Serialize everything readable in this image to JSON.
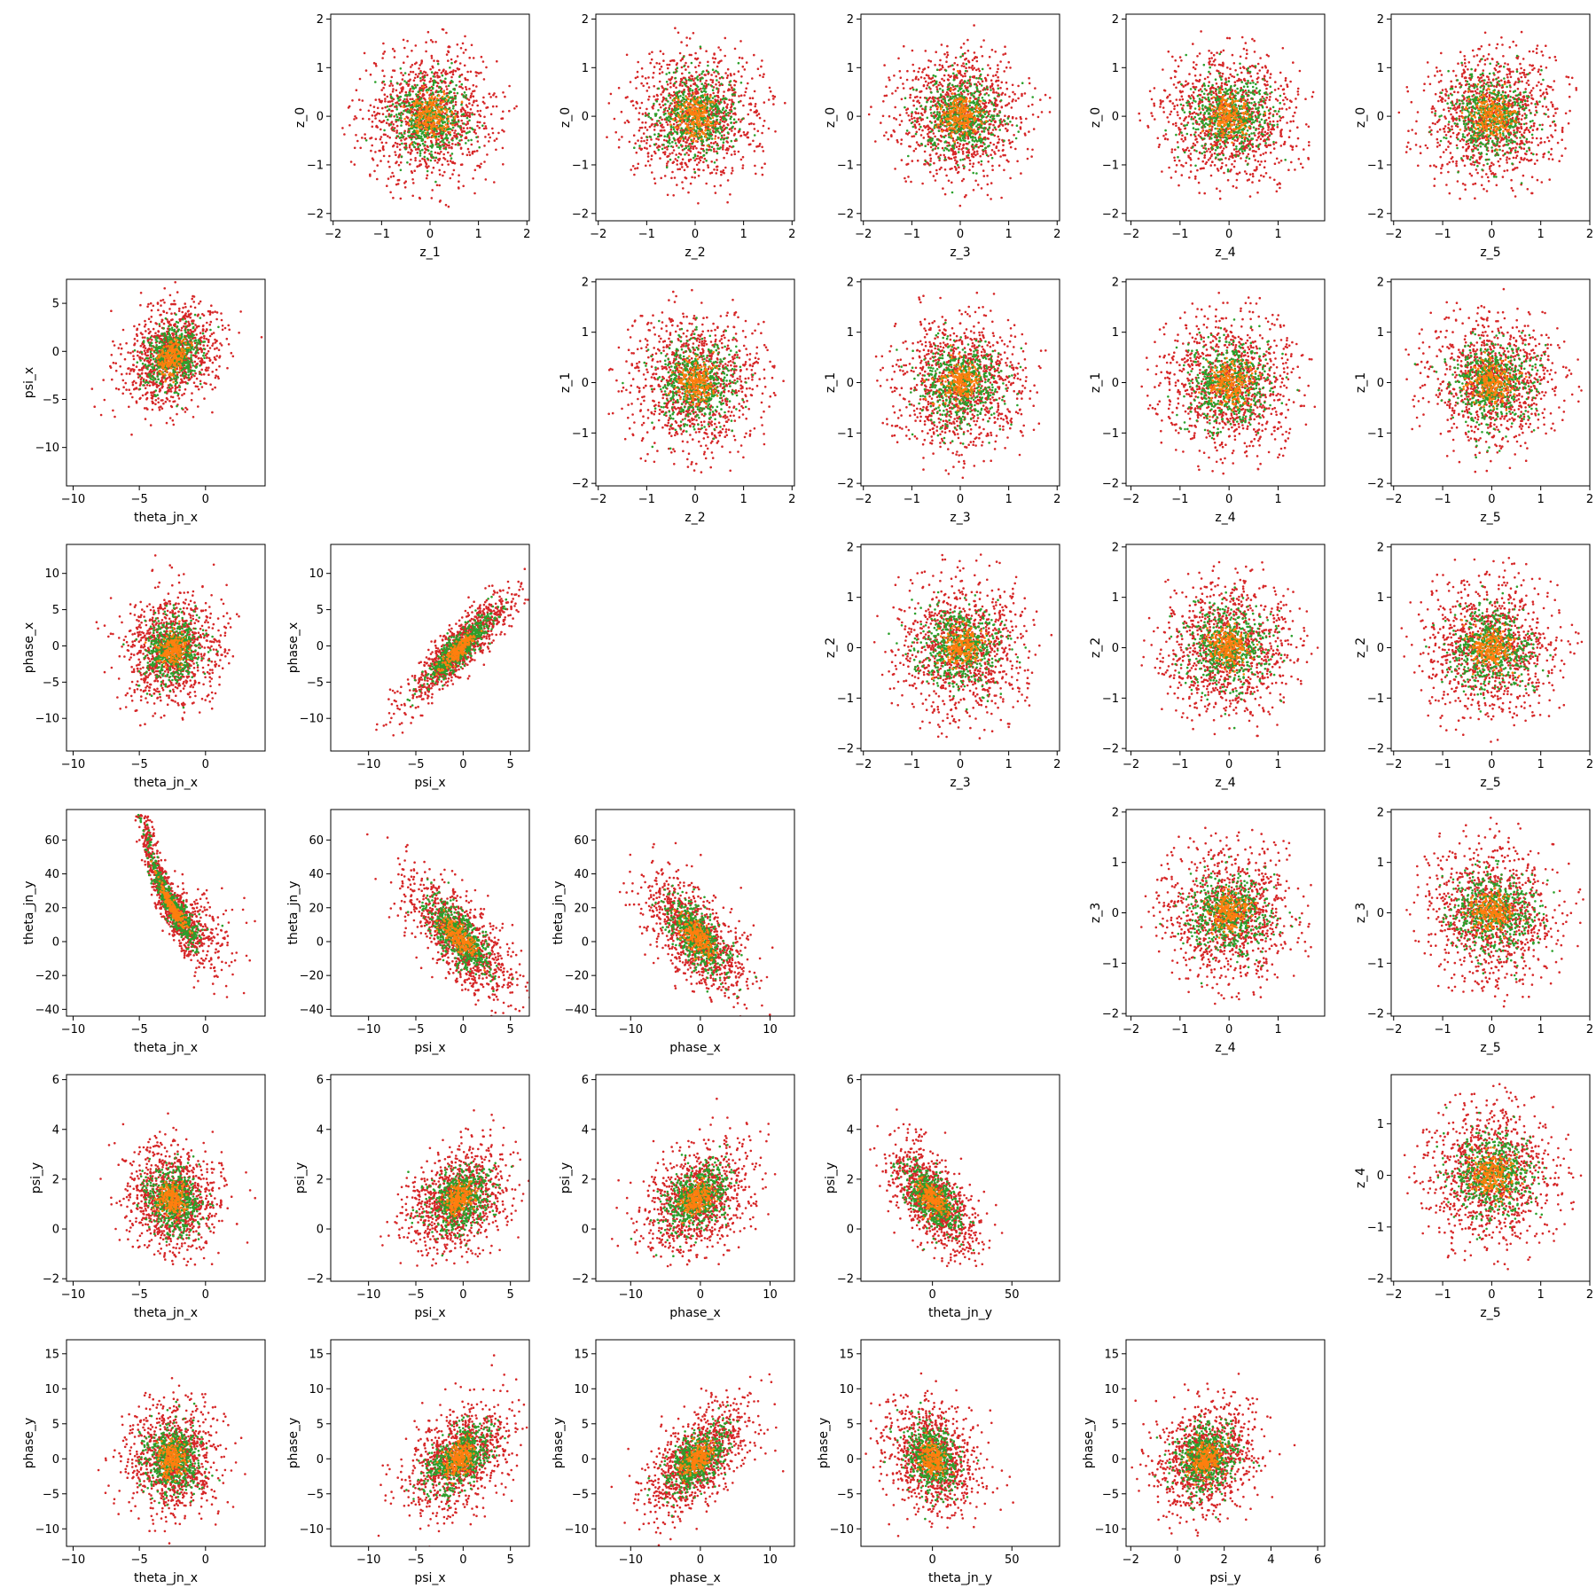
{
  "figure": {
    "type": "scatter-matrix",
    "colors": {
      "red": "#d62728",
      "green": "#2ca02c",
      "orange": "#ff7f0e",
      "axes": "#000000"
    },
    "point_counts": {
      "red": 1000,
      "green": 500,
      "orange": 200
    },
    "spread": {
      "red": 1.0,
      "green": 0.6,
      "orange": 0.3
    }
  },
  "chart_data": [
    {
      "type": "scatter",
      "row": 0,
      "col": 1,
      "xlabel": "z_1",
      "ylabel": "z_0",
      "xlim": [
        -2.05,
        2.05
      ],
      "ylim": [
        -2.15,
        2.1
      ],
      "xticks": [
        -2,
        -1,
        0,
        1,
        2
      ],
      "yticks": [
        -2,
        -1,
        0,
        1,
        2
      ],
      "dist": {
        "kind": "gauss",
        "mx": 0,
        "my": 0,
        "sx": 0.7,
        "sy": 0.7,
        "rho": 0,
        "clip": 1.9
      }
    },
    {
      "type": "scatter",
      "row": 0,
      "col": 2,
      "xlabel": "z_2",
      "ylabel": "z_0",
      "xlim": [
        -2.05,
        2.05
      ],
      "ylim": [
        -2.15,
        2.1
      ],
      "xticks": [
        -2,
        -1,
        0,
        1,
        2
      ],
      "yticks": [
        -2,
        -1,
        0,
        1,
        2
      ],
      "dist": {
        "kind": "gauss",
        "mx": 0,
        "my": 0,
        "sx": 0.7,
        "sy": 0.7,
        "rho": 0,
        "clip": 1.9
      }
    },
    {
      "type": "scatter",
      "row": 0,
      "col": 3,
      "xlabel": "z_3",
      "ylabel": "z_0",
      "xlim": [
        -2.05,
        2.05
      ],
      "ylim": [
        -2.15,
        2.1
      ],
      "xticks": [
        -2,
        -1,
        0,
        1,
        2
      ],
      "yticks": [
        -2,
        -1,
        0,
        1,
        2
      ],
      "dist": {
        "kind": "gauss",
        "mx": 0,
        "my": 0,
        "sx": 0.7,
        "sy": 0.7,
        "rho": 0,
        "clip": 1.9
      }
    },
    {
      "type": "scatter",
      "row": 0,
      "col": 4,
      "xlabel": "z_4",
      "ylabel": "z_0",
      "xlim": [
        -2.1,
        1.95
      ],
      "ylim": [
        -2.15,
        2.1
      ],
      "xticks": [
        -2,
        -1,
        0,
        1
      ],
      "yticks": [
        -2,
        -1,
        0,
        1,
        2
      ],
      "dist": {
        "kind": "gauss",
        "mx": 0,
        "my": 0,
        "sx": 0.7,
        "sy": 0.7,
        "rho": 0,
        "clip": 1.85
      }
    },
    {
      "type": "scatter",
      "row": 0,
      "col": 5,
      "xlabel": "z_5",
      "ylabel": "z_0",
      "xlim": [
        -2.05,
        2.0
      ],
      "ylim": [
        -2.15,
        2.1
      ],
      "xticks": [
        -2,
        -1,
        0,
        1,
        2
      ],
      "yticks": [
        -2,
        -1,
        0,
        1,
        2
      ],
      "dist": {
        "kind": "gauss",
        "mx": 0,
        "my": 0,
        "sx": 0.7,
        "sy": 0.7,
        "rho": 0,
        "clip": 1.9
      }
    },
    {
      "type": "scatter",
      "row": 1,
      "col": 0,
      "xlabel": "theta_jn_x",
      "ylabel": "psi_x",
      "xlim": [
        -10.5,
        4.5
      ],
      "ylim": [
        -14,
        7.5
      ],
      "xticks": [
        -10,
        -5,
        0
      ],
      "yticks": [
        -10,
        -5,
        0,
        5
      ],
      "dist": {
        "kind": "gauss",
        "mx": -2.5,
        "my": -0.5,
        "sx": 1.8,
        "sy": 2.8,
        "rho": 0.3
      }
    },
    {
      "type": "scatter",
      "row": 1,
      "col": 2,
      "xlabel": "z_2",
      "ylabel": "z_1",
      "xlim": [
        -2.05,
        2.05
      ],
      "ylim": [
        -2.05,
        2.05
      ],
      "xticks": [
        -2,
        -1,
        0,
        1,
        2
      ],
      "yticks": [
        -2,
        -1,
        0,
        1,
        2
      ],
      "dist": {
        "kind": "gauss",
        "mx": 0,
        "my": 0,
        "sx": 0.7,
        "sy": 0.7,
        "rho": 0,
        "clip": 1.9
      }
    },
    {
      "type": "scatter",
      "row": 1,
      "col": 3,
      "xlabel": "z_3",
      "ylabel": "z_1",
      "xlim": [
        -2.05,
        2.05
      ],
      "ylim": [
        -2.05,
        2.05
      ],
      "xticks": [
        -2,
        -1,
        0,
        1,
        2
      ],
      "yticks": [
        -2,
        -1,
        0,
        1,
        2
      ],
      "dist": {
        "kind": "gauss",
        "mx": 0,
        "my": 0,
        "sx": 0.7,
        "sy": 0.7,
        "rho": 0,
        "clip": 1.9
      }
    },
    {
      "type": "scatter",
      "row": 1,
      "col": 4,
      "xlabel": "z_4",
      "ylabel": "z_1",
      "xlim": [
        -2.1,
        1.95
      ],
      "ylim": [
        -2.05,
        2.05
      ],
      "xticks": [
        -2,
        -1,
        0,
        1
      ],
      "yticks": [
        -2,
        -1,
        0,
        1,
        2
      ],
      "dist": {
        "kind": "gauss",
        "mx": 0,
        "my": 0,
        "sx": 0.7,
        "sy": 0.7,
        "rho": 0,
        "clip": 1.85
      }
    },
    {
      "type": "scatter",
      "row": 1,
      "col": 5,
      "xlabel": "z_5",
      "ylabel": "z_1",
      "xlim": [
        -2.05,
        2.0
      ],
      "ylim": [
        -2.05,
        2.05
      ],
      "xticks": [
        -2,
        -1,
        0,
        1,
        2
      ],
      "yticks": [
        -2,
        -1,
        0,
        1,
        2
      ],
      "dist": {
        "kind": "gauss",
        "mx": 0,
        "my": 0,
        "sx": 0.7,
        "sy": 0.7,
        "rho": 0,
        "clip": 1.9
      }
    },
    {
      "type": "scatter",
      "row": 2,
      "col": 0,
      "xlabel": "theta_jn_x",
      "ylabel": "phase_x",
      "xlim": [
        -10.5,
        4.5
      ],
      "ylim": [
        -14.5,
        14
      ],
      "xticks": [
        -10,
        -5,
        0
      ],
      "yticks": [
        -10,
        -5,
        0,
        5,
        10
      ],
      "dist": {
        "kind": "gauss",
        "mx": -2.5,
        "my": -0.5,
        "sx": 1.8,
        "sy": 3.8,
        "rho": 0.1
      }
    },
    {
      "type": "scatter",
      "row": 2,
      "col": 1,
      "xlabel": "psi_x",
      "ylabel": "phase_x",
      "xlim": [
        -14,
        7
      ],
      "ylim": [
        -14.5,
        14
      ],
      "xticks": [
        -10,
        -5,
        0,
        5
      ],
      "yticks": [
        -10,
        -5,
        0,
        5,
        10
      ],
      "dist": {
        "kind": "gauss",
        "mx": -0.5,
        "my": -0.5,
        "sx": 2.8,
        "sy": 3.8,
        "rho": 0.88
      }
    },
    {
      "type": "scatter",
      "row": 2,
      "col": 3,
      "xlabel": "z_3",
      "ylabel": "z_2",
      "xlim": [
        -2.05,
        2.05
      ],
      "ylim": [
        -2.05,
        2.05
      ],
      "xticks": [
        -2,
        -1,
        0,
        1,
        2
      ],
      "yticks": [
        -2,
        -1,
        0,
        1,
        2
      ],
      "dist": {
        "kind": "gauss",
        "mx": 0,
        "my": 0,
        "sx": 0.7,
        "sy": 0.7,
        "rho": 0,
        "clip": 1.9
      }
    },
    {
      "type": "scatter",
      "row": 2,
      "col": 4,
      "xlabel": "z_4",
      "ylabel": "z_2",
      "xlim": [
        -2.1,
        1.95
      ],
      "ylim": [
        -2.05,
        2.05
      ],
      "xticks": [
        -2,
        -1,
        0,
        1
      ],
      "yticks": [
        -2,
        -1,
        0,
        1,
        2
      ],
      "dist": {
        "kind": "gauss",
        "mx": 0,
        "my": 0,
        "sx": 0.7,
        "sy": 0.7,
        "rho": 0,
        "clip": 1.85
      }
    },
    {
      "type": "scatter",
      "row": 2,
      "col": 5,
      "xlabel": "z_5",
      "ylabel": "z_2",
      "xlim": [
        -2.05,
        2.0
      ],
      "ylim": [
        -2.05,
        2.05
      ],
      "xticks": [
        -2,
        -1,
        0,
        1,
        2
      ],
      "yticks": [
        -2,
        -1,
        0,
        1,
        2
      ],
      "dist": {
        "kind": "gauss",
        "mx": 0,
        "my": 0,
        "sx": 0.7,
        "sy": 0.7,
        "rho": 0,
        "clip": 1.9
      }
    },
    {
      "type": "scatter",
      "row": 3,
      "col": 0,
      "xlabel": "theta_jn_x",
      "ylabel": "theta_jn_y",
      "xlim": [
        -10.5,
        4.5
      ],
      "ylim": [
        -44,
        78
      ],
      "xticks": [
        -10,
        -5,
        0
      ],
      "yticks": [
        -40,
        -20,
        0,
        20,
        40,
        60
      ],
      "dist": {
        "kind": "hyper",
        "mx": -2.5,
        "sx": 1.8,
        "k": 28,
        "c": -8,
        "s": 7,
        "xoff": -6
      }
    },
    {
      "type": "scatter",
      "row": 3,
      "col": 1,
      "xlabel": "psi_x",
      "ylabel": "theta_jn_y",
      "xlim": [
        -14,
        7
      ],
      "ylim": [
        -44,
        78
      ],
      "xticks": [
        -10,
        -5,
        0,
        5
      ],
      "yticks": [
        -40,
        -20,
        0,
        20,
        40,
        60
      ],
      "dist": {
        "kind": "gauss",
        "mx": -0.5,
        "my": 3,
        "sx": 2.8,
        "sy": 18,
        "rho": -0.72
      }
    },
    {
      "type": "scatter",
      "row": 3,
      "col": 2,
      "xlabel": "phase_x",
      "ylabel": "theta_jn_y",
      "xlim": [
        -15,
        13.5
      ],
      "ylim": [
        -44,
        78
      ],
      "xticks": [
        -10,
        0,
        10
      ],
      "yticks": [
        -40,
        -20,
        0,
        20,
        40,
        60
      ],
      "dist": {
        "kind": "gauss",
        "mx": -0.5,
        "my": 3,
        "sx": 3.8,
        "sy": 18,
        "rho": -0.65
      }
    },
    {
      "type": "scatter",
      "row": 3,
      "col": 4,
      "xlabel": "z_4",
      "ylabel": "z_3",
      "xlim": [
        -2.1,
        1.95
      ],
      "ylim": [
        -2.05,
        2.05
      ],
      "xticks": [
        -2,
        -1,
        0,
        1
      ],
      "yticks": [
        -2,
        -1,
        0,
        1,
        2
      ],
      "dist": {
        "kind": "gauss",
        "mx": 0,
        "my": 0,
        "sx": 0.7,
        "sy": 0.7,
        "rho": 0,
        "clip": 1.85
      }
    },
    {
      "type": "scatter",
      "row": 3,
      "col": 5,
      "xlabel": "z_5",
      "ylabel": "z_3",
      "xlim": [
        -2.05,
        2.0
      ],
      "ylim": [
        -2.05,
        2.05
      ],
      "xticks": [
        -2,
        -1,
        0,
        1,
        2
      ],
      "yticks": [
        -2,
        -1,
        0,
        1,
        2
      ],
      "dist": {
        "kind": "gauss",
        "mx": 0,
        "my": 0,
        "sx": 0.7,
        "sy": 0.7,
        "rho": 0,
        "clip": 1.9
      }
    },
    {
      "type": "scatter",
      "row": 4,
      "col": 0,
      "xlabel": "theta_jn_x",
      "ylabel": "psi_y",
      "xlim": [
        -10.5,
        4.5
      ],
      "ylim": [
        -2.1,
        6.2
      ],
      "xticks": [
        -10,
        -5,
        0
      ],
      "yticks": [
        -2,
        0,
        2,
        4,
        6
      ],
      "dist": {
        "kind": "gauss",
        "mx": -2.5,
        "my": 1.2,
        "sx": 1.8,
        "sy": 1.1,
        "rho": -0.1,
        "minY": -1.5
      }
    },
    {
      "type": "scatter",
      "row": 4,
      "col": 1,
      "xlabel": "psi_x",
      "ylabel": "psi_y",
      "xlim": [
        -14,
        7
      ],
      "ylim": [
        -2.1,
        6.2
      ],
      "xticks": [
        -10,
        -5,
        0,
        5
      ],
      "yticks": [
        -2,
        0,
        2,
        4,
        6
      ],
      "dist": {
        "kind": "gauss",
        "mx": -0.5,
        "my": 1.2,
        "sx": 2.8,
        "sy": 1.1,
        "rho": 0.3,
        "minY": -1.5
      }
    },
    {
      "type": "scatter",
      "row": 4,
      "col": 2,
      "xlabel": "phase_x",
      "ylabel": "psi_y",
      "xlim": [
        -15,
        13.5
      ],
      "ylim": [
        -2.1,
        6.2
      ],
      "xticks": [
        -10,
        0,
        10
      ],
      "yticks": [
        -2,
        0,
        2,
        4,
        6
      ],
      "dist": {
        "kind": "gauss",
        "mx": -0.5,
        "my": 1.2,
        "sx": 3.8,
        "sy": 1.1,
        "rho": 0.35,
        "minY": -1.5
      }
    },
    {
      "type": "scatter",
      "row": 4,
      "col": 3,
      "xlabel": "theta_jn_y",
      "ylabel": "psi_y",
      "xlim": [
        -45,
        80
      ],
      "ylim": [
        -2.1,
        6.2
      ],
      "xticks": [
        0,
        50
      ],
      "yticks": [
        -2,
        0,
        2,
        4,
        6
      ],
      "dist": {
        "kind": "gauss",
        "mx": 0,
        "my": 1.2,
        "sx": 14,
        "sy": 1.1,
        "rho": -0.55,
        "minY": -1.5
      }
    },
    {
      "type": "scatter",
      "row": 4,
      "col": 5,
      "xlabel": "z_5",
      "ylabel": "z_4",
      "xlim": [
        -2.05,
        2.0
      ],
      "ylim": [
        -2.05,
        1.95
      ],
      "xticks": [
        -2,
        -1,
        0,
        1,
        2
      ],
      "yticks": [
        -2,
        -1,
        0,
        1
      ],
      "dist": {
        "kind": "gauss",
        "mx": 0,
        "my": 0,
        "sx": 0.7,
        "sy": 0.7,
        "rho": 0,
        "clip": 1.85
      }
    },
    {
      "type": "scatter",
      "row": 5,
      "col": 0,
      "xlabel": "theta_jn_x",
      "ylabel": "phase_y",
      "xlim": [
        -10.5,
        4.5
      ],
      "ylim": [
        -12.5,
        17
      ],
      "xticks": [
        -10,
        -5,
        0
      ],
      "yticks": [
        -10,
        -5,
        0,
        5,
        10,
        15
      ],
      "dist": {
        "kind": "gauss",
        "mx": -2.5,
        "my": 0,
        "sx": 1.8,
        "sy": 4,
        "rho": 0.05
      }
    },
    {
      "type": "scatter",
      "row": 5,
      "col": 1,
      "xlabel": "psi_x",
      "ylabel": "phase_y",
      "xlim": [
        -14,
        7
      ],
      "ylim": [
        -12.5,
        17
      ],
      "xticks": [
        -10,
        -5,
        0,
        5
      ],
      "yticks": [
        -10,
        -5,
        0,
        5,
        10,
        15
      ],
      "dist": {
        "kind": "gauss",
        "mx": -0.5,
        "my": 0,
        "sx": 2.8,
        "sy": 4,
        "rho": 0.45
      }
    },
    {
      "type": "scatter",
      "row": 5,
      "col": 2,
      "xlabel": "phase_x",
      "ylabel": "phase_y",
      "xlim": [
        -15,
        13.5
      ],
      "ylim": [
        -12.5,
        17
      ],
      "xticks": [
        -10,
        0,
        10
      ],
      "yticks": [
        -10,
        -5,
        0,
        5,
        10,
        15
      ],
      "dist": {
        "kind": "gauss",
        "mx": -0.5,
        "my": 0,
        "sx": 3.8,
        "sy": 4,
        "rho": 0.6
      }
    },
    {
      "type": "scatter",
      "row": 5,
      "col": 3,
      "xlabel": "theta_jn_y",
      "ylabel": "phase_y",
      "xlim": [
        -45,
        80
      ],
      "ylim": [
        -12.5,
        17
      ],
      "xticks": [
        0,
        50
      ],
      "yticks": [
        -10,
        -5,
        0,
        5,
        10,
        15
      ],
      "dist": {
        "kind": "gauss",
        "mx": 0,
        "my": 0,
        "sx": 14,
        "sy": 4,
        "rho": -0.3
      }
    },
    {
      "type": "scatter",
      "row": 5,
      "col": 4,
      "xlabel": "psi_y",
      "ylabel": "phase_y",
      "xlim": [
        -2.2,
        6.3
      ],
      "ylim": [
        -12.5,
        17
      ],
      "xticks": [
        -2,
        0,
        2,
        4,
        6
      ],
      "yticks": [
        -10,
        -5,
        0,
        5,
        10,
        15
      ],
      "dist": {
        "kind": "gauss",
        "mx": 1.2,
        "my": 0,
        "sx": 1.1,
        "sy": 4,
        "rho": 0.2
      }
    }
  ]
}
